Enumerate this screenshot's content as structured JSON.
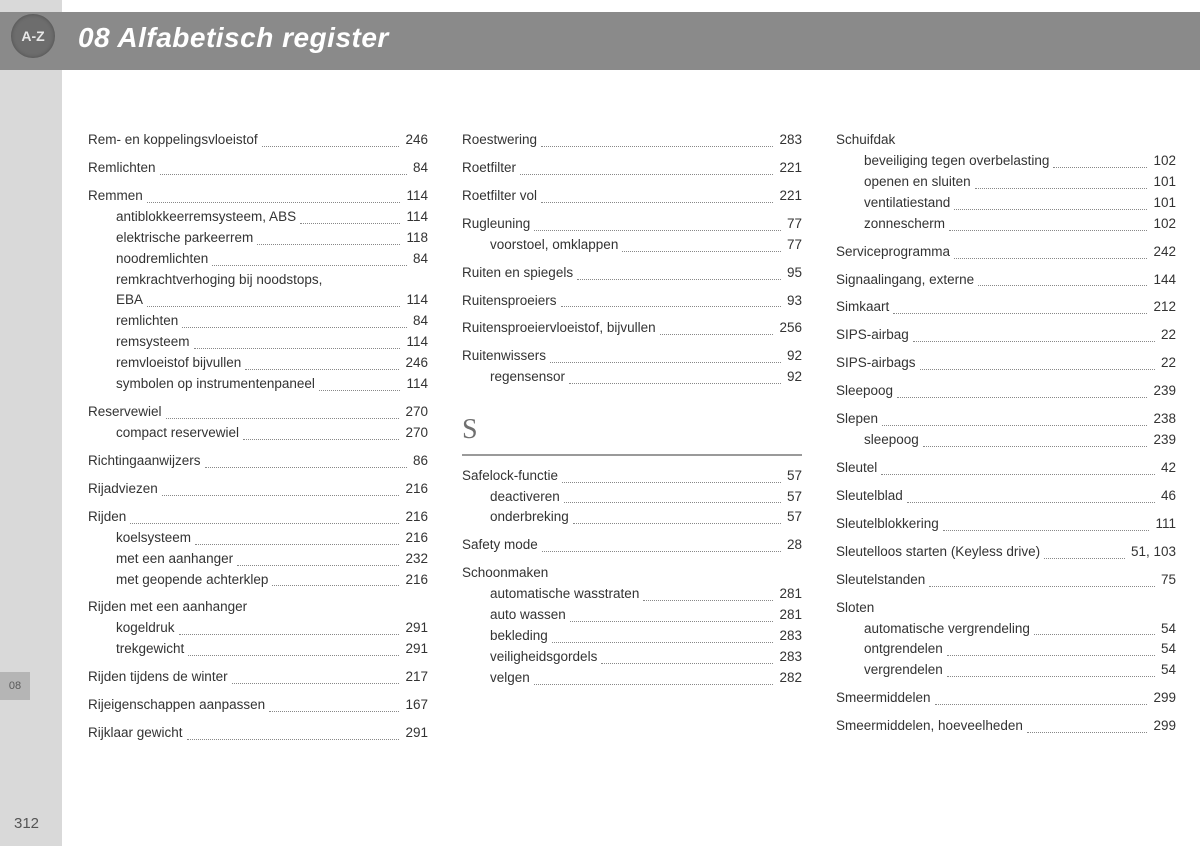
{
  "page": {
    "header_title": "08 Alfabetisch register",
    "badge_text": "A-Z",
    "section_tab_label": "08",
    "page_number": "312",
    "colors": {
      "header_bg": "#8a8a8a",
      "left_rail_bg": "#d9d9d9",
      "badge_bg": "#6d6d6d",
      "text": "#333333",
      "dots": "#888888",
      "letter_head": "#707070"
    }
  },
  "columns": [
    {
      "items": [
        {
          "type": "entry",
          "label": "Rem- en koppelingsvloeistof",
          "page": "246"
        },
        {
          "type": "space"
        },
        {
          "type": "entry",
          "label": "Remlichten",
          "page": "84"
        },
        {
          "type": "space"
        },
        {
          "type": "entry",
          "label": "Remmen",
          "page": "114"
        },
        {
          "type": "sub",
          "label": "antiblokkeerremsysteem, ABS",
          "page": "114"
        },
        {
          "type": "sub",
          "label": "elektrische parkeerrem",
          "page": "118"
        },
        {
          "type": "sub",
          "label": "noodremlichten",
          "page": "84"
        },
        {
          "type": "subtext",
          "label": "remkrachtverhoging bij noodstops,"
        },
        {
          "type": "sub",
          "label": "EBA",
          "page": "114"
        },
        {
          "type": "sub",
          "label": "remlichten",
          "page": "84"
        },
        {
          "type": "sub",
          "label": "remsysteem",
          "page": "114"
        },
        {
          "type": "sub",
          "label": "remvloeistof bijvullen",
          "page": "246"
        },
        {
          "type": "sub",
          "label": "symbolen op instrumentenpaneel",
          "page": "114"
        },
        {
          "type": "space"
        },
        {
          "type": "entry",
          "label": "Reservewiel",
          "page": "270"
        },
        {
          "type": "sub",
          "label": "compact reservewiel",
          "page": "270"
        },
        {
          "type": "space"
        },
        {
          "type": "entry",
          "label": "Richtingaanwijzers",
          "page": "86"
        },
        {
          "type": "space"
        },
        {
          "type": "entry",
          "label": "Rijadviezen",
          "page": "216"
        },
        {
          "type": "space"
        },
        {
          "type": "entry",
          "label": "Rijden",
          "page": "216"
        },
        {
          "type": "sub",
          "label": "koelsysteem",
          "page": "216"
        },
        {
          "type": "sub",
          "label": "met een aanhanger",
          "page": "232"
        },
        {
          "type": "sub",
          "label": "met geopende achterklep",
          "page": "216"
        },
        {
          "type": "space"
        },
        {
          "type": "plain",
          "label": "Rijden met een aanhanger"
        },
        {
          "type": "sub",
          "label": "kogeldruk",
          "page": "291"
        },
        {
          "type": "sub",
          "label": "trekgewicht",
          "page": "291"
        },
        {
          "type": "space"
        },
        {
          "type": "entry",
          "label": "Rijden tijdens de winter",
          "page": "217"
        },
        {
          "type": "space"
        },
        {
          "type": "entry",
          "label": "Rijeigenschappen aanpassen",
          "page": "167"
        },
        {
          "type": "space"
        },
        {
          "type": "entry",
          "label": "Rijklaar gewicht",
          "page": "291"
        }
      ]
    },
    {
      "items": [
        {
          "type": "entry",
          "label": "Roestwering",
          "page": "283"
        },
        {
          "type": "space"
        },
        {
          "type": "entry",
          "label": "Roetfilter",
          "page": "221"
        },
        {
          "type": "space"
        },
        {
          "type": "entry",
          "label": "Roetfilter vol",
          "page": "221"
        },
        {
          "type": "space"
        },
        {
          "type": "entry",
          "label": "Rugleuning",
          "page": "77"
        },
        {
          "type": "sub",
          "label": "voorstoel, omklappen",
          "page": "77"
        },
        {
          "type": "space"
        },
        {
          "type": "entry",
          "label": "Ruiten en spiegels",
          "page": "95"
        },
        {
          "type": "space"
        },
        {
          "type": "entry",
          "label": "Ruitensproeiers",
          "page": "93"
        },
        {
          "type": "space"
        },
        {
          "type": "entry",
          "label": "Ruitensproeiervloeistof, bijvullen",
          "page": "256"
        },
        {
          "type": "space"
        },
        {
          "type": "entry",
          "label": "Ruitenwissers",
          "page": "92"
        },
        {
          "type": "sub",
          "label": "regensensor",
          "page": "92"
        },
        {
          "type": "letter",
          "label": "S"
        },
        {
          "type": "entry",
          "label": "Safelock-functie",
          "page": "57"
        },
        {
          "type": "sub",
          "label": "deactiveren",
          "page": "57"
        },
        {
          "type": "sub",
          "label": "onderbreking",
          "page": "57"
        },
        {
          "type": "space"
        },
        {
          "type": "entry",
          "label": "Safety mode",
          "page": "28"
        },
        {
          "type": "space"
        },
        {
          "type": "plain",
          "label": "Schoonmaken"
        },
        {
          "type": "sub",
          "label": "automatische wasstraten",
          "page": "281"
        },
        {
          "type": "sub",
          "label": "auto wassen",
          "page": "281"
        },
        {
          "type": "sub",
          "label": "bekleding",
          "page": "283"
        },
        {
          "type": "sub",
          "label": "veiligheidsgordels",
          "page": "283"
        },
        {
          "type": "sub",
          "label": "velgen",
          "page": "282"
        }
      ]
    },
    {
      "items": [
        {
          "type": "plain",
          "label": "Schuifdak"
        },
        {
          "type": "sub",
          "label": "beveiliging tegen overbelasting",
          "page": "102"
        },
        {
          "type": "sub",
          "label": "openen en sluiten",
          "page": "101"
        },
        {
          "type": "sub",
          "label": "ventilatiestand",
          "page": "101"
        },
        {
          "type": "sub",
          "label": "zonnescherm",
          "page": "102"
        },
        {
          "type": "space"
        },
        {
          "type": "entry",
          "label": "Serviceprogramma",
          "page": "242"
        },
        {
          "type": "space"
        },
        {
          "type": "entry",
          "label": "Signaalingang, externe",
          "page": "144"
        },
        {
          "type": "space"
        },
        {
          "type": "entry",
          "label": "Simkaart",
          "page": "212"
        },
        {
          "type": "space"
        },
        {
          "type": "entry",
          "label": "SIPS-airbag",
          "page": "22"
        },
        {
          "type": "space"
        },
        {
          "type": "entry",
          "label": "SIPS-airbags",
          "page": "22"
        },
        {
          "type": "space"
        },
        {
          "type": "entry",
          "label": "Sleepoog",
          "page": "239"
        },
        {
          "type": "space"
        },
        {
          "type": "entry",
          "label": "Slepen",
          "page": "238"
        },
        {
          "type": "sub",
          "label": "sleepoog",
          "page": "239"
        },
        {
          "type": "space"
        },
        {
          "type": "entry",
          "label": "Sleutel",
          "page": "42"
        },
        {
          "type": "space"
        },
        {
          "type": "entry",
          "label": "Sleutelblad",
          "page": "46"
        },
        {
          "type": "space"
        },
        {
          "type": "entry",
          "label": "Sleutelblokkering",
          "page": "111"
        },
        {
          "type": "space"
        },
        {
          "type": "entry",
          "label": "Sleutelloos starten (Keyless drive)",
          "page": "51, 103"
        },
        {
          "type": "space"
        },
        {
          "type": "entry",
          "label": "Sleutelstanden",
          "page": "75"
        },
        {
          "type": "space"
        },
        {
          "type": "plain",
          "label": "Sloten"
        },
        {
          "type": "sub",
          "label": "automatische vergrendeling",
          "page": "54"
        },
        {
          "type": "sub",
          "label": "ontgrendelen",
          "page": "54"
        },
        {
          "type": "sub",
          "label": "vergrendelen",
          "page": "54"
        },
        {
          "type": "space"
        },
        {
          "type": "entry",
          "label": "Smeermiddelen",
          "page": "299"
        },
        {
          "type": "space"
        },
        {
          "type": "entry",
          "label": "Smeermiddelen, hoeveelheden",
          "page": "299"
        }
      ]
    }
  ]
}
